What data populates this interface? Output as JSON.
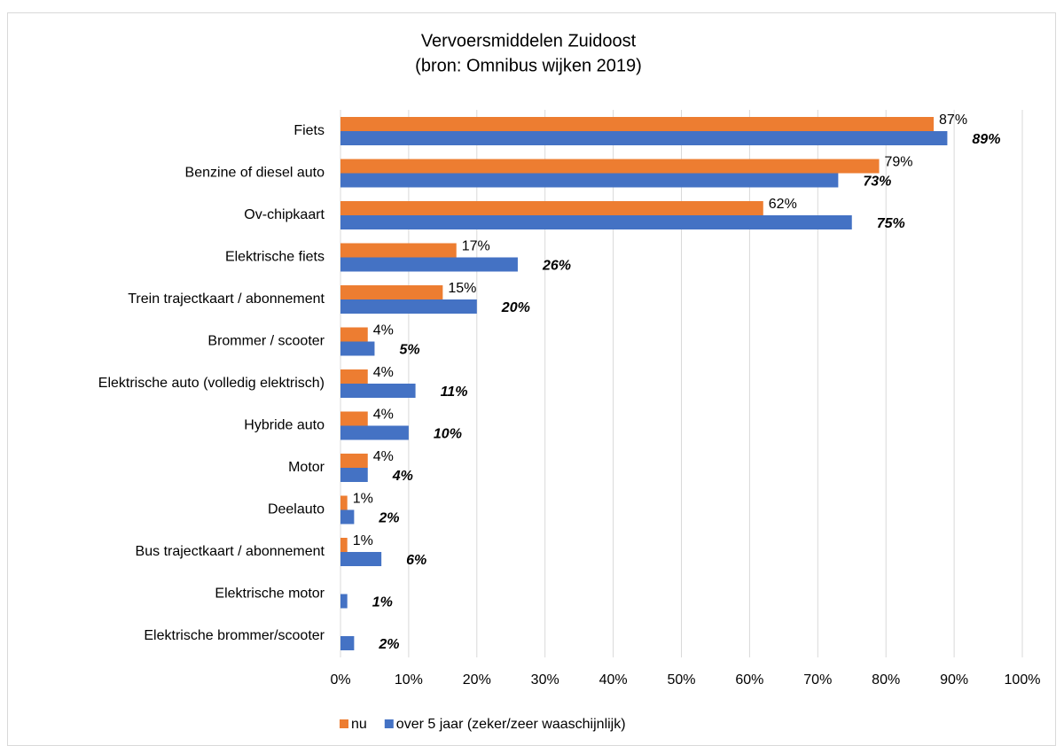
{
  "chart_data": {
    "type": "hbar",
    "title": [
      "Vervoersmiddelen Zuidoost",
      "(bron: Omnibus wijken 2019)"
    ],
    "categories": [
      "Fiets",
      "Benzine of diesel auto",
      "Ov-chipkaart",
      "Elektrische fiets",
      "Trein trajectkaart / abonnement",
      "Brommer / scooter",
      "Elektrische auto (volledig elektrisch)",
      "Hybride auto",
      "Motor",
      "Deelauto",
      "Bus trajectkaart / abonnement",
      "Elektrische motor",
      "Elektrische brommer/scooter"
    ],
    "series": [
      {
        "name": "nu",
        "color": "#ed7d31",
        "values": [
          87,
          79,
          62,
          17,
          15,
          4,
          4,
          4,
          4,
          1,
          1,
          null,
          null
        ],
        "value_labels": [
          "87%",
          "79%",
          "62%",
          "17%",
          "15%",
          "4%",
          "4%",
          "4%",
          "4%",
          "1%",
          "1%",
          null,
          null
        ]
      },
      {
        "name": "over 5 jaar (zeker/zeer waaschijnlijk)",
        "color": "#4472c4",
        "values": [
          89,
          73,
          75,
          26,
          20,
          5,
          11,
          10,
          4,
          2,
          6,
          1,
          2
        ],
        "value_labels": [
          "89%",
          "73%",
          "75%",
          "26%",
          "20%",
          "5%",
          "11%",
          "10%",
          "4%",
          "2%",
          "6%",
          "1%",
          "2%"
        ]
      }
    ],
    "xlim": [
      0,
      100
    ],
    "xticks": [
      {
        "value": 0,
        "label": "0%"
      },
      {
        "value": 10,
        "label": "10%"
      },
      {
        "value": 20,
        "label": "20%"
      },
      {
        "value": 30,
        "label": "30%"
      },
      {
        "value": 40,
        "label": "40%"
      },
      {
        "value": 50,
        "label": "50%"
      },
      {
        "value": 60,
        "label": "60%"
      },
      {
        "value": 70,
        "label": "70%"
      },
      {
        "value": 80,
        "label": "80%"
      },
      {
        "value": 90,
        "label": "90%"
      },
      {
        "value": 100,
        "label": "100%"
      }
    ],
    "grid": true,
    "legend": "bottom"
  }
}
